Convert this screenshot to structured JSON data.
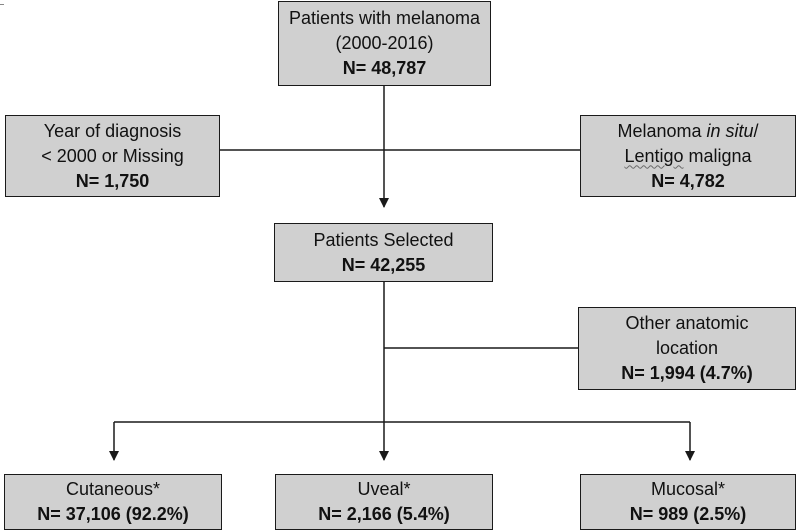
{
  "colors": {
    "box_fill": "#d0d0d0",
    "border": "#1a1a1a",
    "line": "#1a1a1a"
  },
  "boxes": {
    "top": {
      "line1": "Patients with melanoma",
      "line2": "(2000-2016)",
      "count": "N= 48,787"
    },
    "excl_left": {
      "line1": "Year of diagnosis",
      "line2": "< 2000 or Missing",
      "count": "N= 1,750"
    },
    "excl_right": {
      "line1_pre": "Melanoma ",
      "line1_italic": "in situ",
      "line1_post": "/",
      "line2_underlined": "Lentigo",
      "line2_rest": " maligna",
      "count": "N= 4,782"
    },
    "selected": {
      "line1": "Patients Selected",
      "count": "N= 42,255"
    },
    "excl_other": {
      "line1": "Other anatomic",
      "line2": "location",
      "count": "N= 1,994 (4.7%)"
    },
    "cutaneous": {
      "line1": "Cutaneous*",
      "count": "N= 37,106 (92.2%)"
    },
    "uveal": {
      "line1": "Uveal*",
      "count": "N= 2,166 (5.4%)"
    },
    "mucosal": {
      "line1": "Mucosal*",
      "count": "N= 989 (2.5%)"
    }
  }
}
